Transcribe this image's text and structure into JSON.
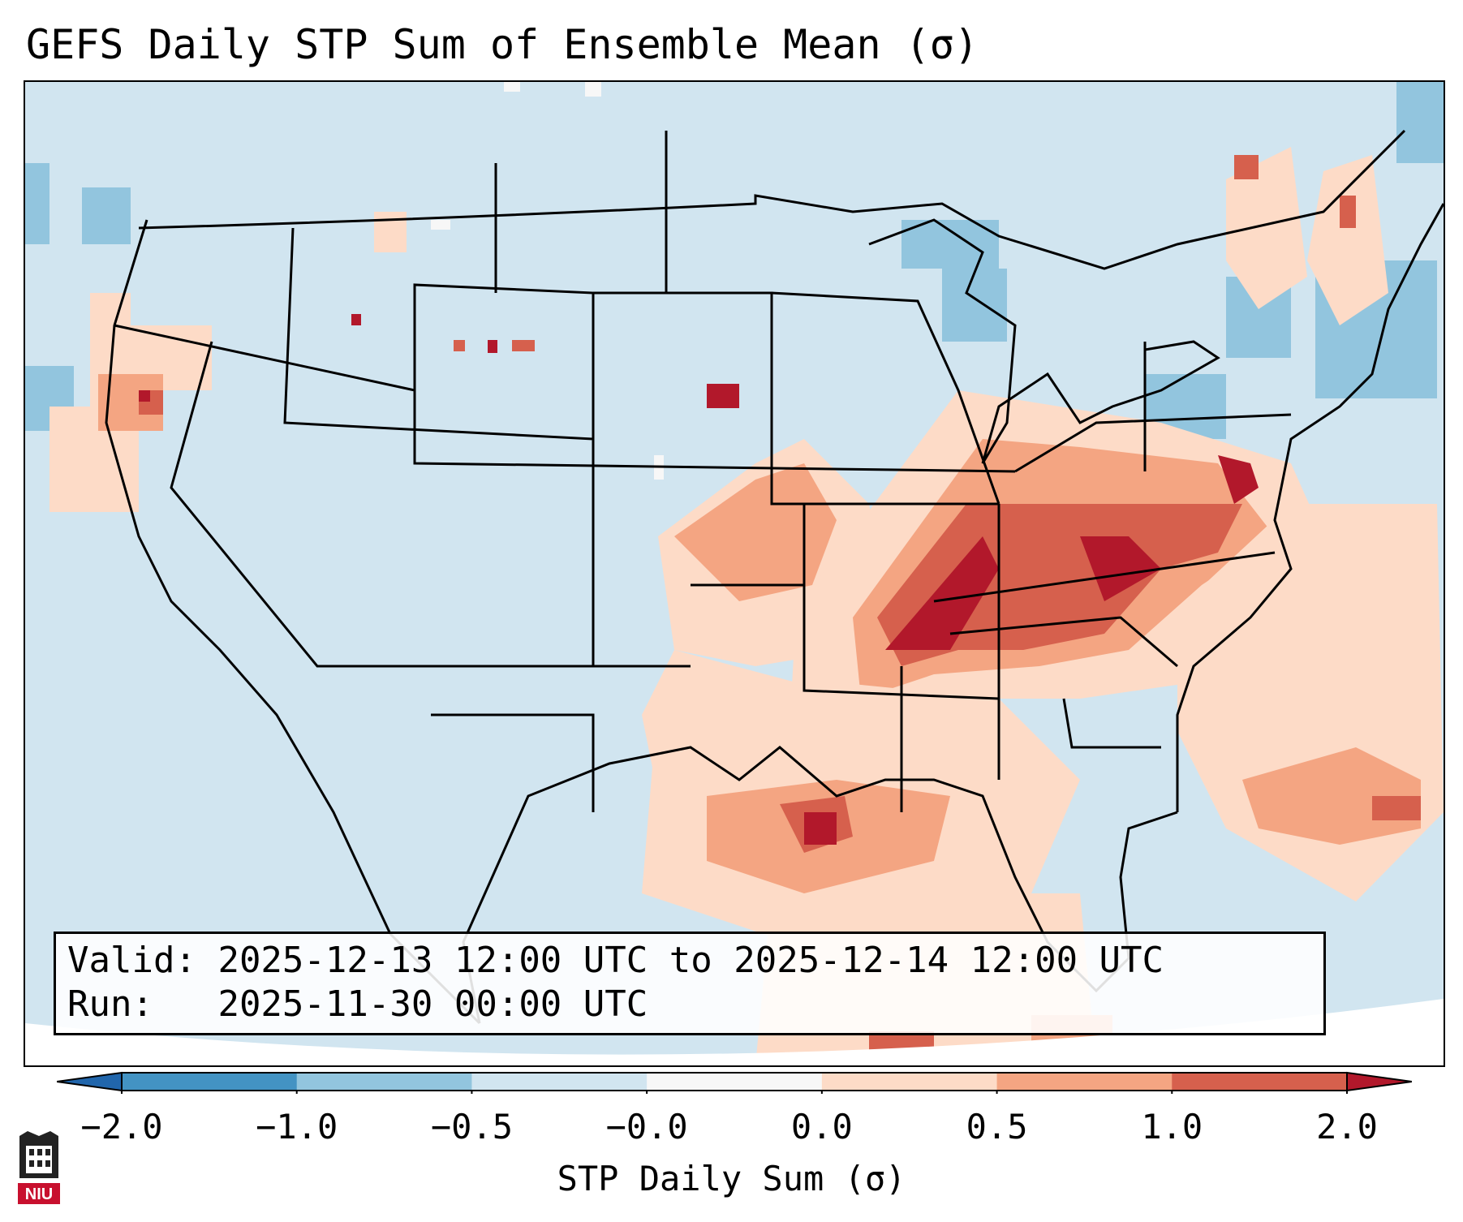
{
  "title": "GEFS Daily STP Sum of Ensemble Mean (σ)",
  "info": {
    "valid_label": "Valid:",
    "valid_value": "2025-12-13 12:00 UTC to 2025-12-14 12:00 UTC",
    "run_label": "Run:",
    "run_value": "2025-11-30 00:00 UTC"
  },
  "colorbar": {
    "label": "STP Daily Sum (σ)",
    "ticks": [
      "−2.0",
      "−1.0",
      "−0.5",
      "−0.0",
      "0.0",
      "0.5",
      "1.0",
      "2.0"
    ],
    "colors": [
      "#4393c3",
      "#92c5de",
      "#d1e5f0",
      "#f7f7f7",
      "#fddbc7",
      "#f4a582",
      "#d6604d",
      "#b2182b"
    ],
    "under_color": "#2166ac",
    "over_color": "#b2182b"
  },
  "logo": {
    "text": "NIU",
    "color": "#c8102e"
  },
  "map": {
    "background_color": "#d1e5f0",
    "levels": {
      "light": "#fddbc7",
      "medium": "#f4a582",
      "strong": "#d6604d",
      "extreme": "#b2182b",
      "neg": "#92c5de",
      "neutral": "#f7f7f7"
    }
  }
}
